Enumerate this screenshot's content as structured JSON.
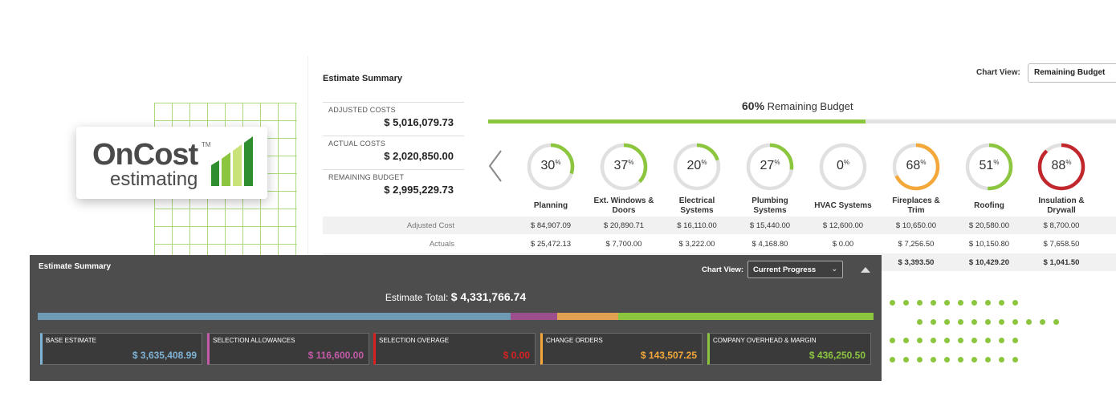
{
  "logo": {
    "word1": "OnCost",
    "tm": "TM",
    "word2": "estimating"
  },
  "top_panel": {
    "title": "Estimate Summary",
    "chart_view_label": "Chart View:",
    "chart_view_value": "Remaining Budget",
    "costs": [
      {
        "label": "ADJUSTED COSTS",
        "value": "$ 5,016,079.73"
      },
      {
        "label": "ACTUAL COSTS",
        "value": "$ 2,020,850.00"
      },
      {
        "label": "REMAINING BUDGET",
        "value": "$ 2,995,229.73"
      }
    ],
    "remaining_pct": "60%",
    "remaining_label": "Remaining Budget",
    "remaining_fraction": 0.6,
    "categories": [
      {
        "name": "Planning",
        "pct": "30",
        "fraction": 0.3,
        "color": "#8cc63f"
      },
      {
        "name": "Ext. Windows & Doors",
        "pct": "37",
        "fraction": 0.37,
        "color": "#8cc63f"
      },
      {
        "name": "Electrical Systems",
        "pct": "20",
        "fraction": 0.2,
        "color": "#8cc63f"
      },
      {
        "name": "Plumbing Systems",
        "pct": "27",
        "fraction": 0.27,
        "color": "#8cc63f"
      },
      {
        "name": "HVAC Systems",
        "pct": "0",
        "fraction": 0.0,
        "color": "#8cc63f"
      },
      {
        "name": "Fireplaces & Trim",
        "pct": "68",
        "fraction": 0.68,
        "color": "#f4a83a"
      },
      {
        "name": "Roofing",
        "pct": "51",
        "fraction": 0.51,
        "color": "#8cc63f"
      },
      {
        "name": "Insulation & Drywall",
        "pct": "88",
        "fraction": 0.88,
        "color": "#c1272d"
      }
    ],
    "pct_symbol": "%",
    "rows": [
      {
        "label": "Adjusted Cost",
        "values": [
          "$ 84,907.09",
          "$ 20,890.71",
          "$ 16,110.00",
          "$ 15,440.00",
          "$ 12,600.00",
          "$ 10,650.00",
          "$ 20,580.00",
          "$ 8,700.00"
        ]
      },
      {
        "label": "Actuals",
        "values": [
          "$ 25,472.13",
          "$ 7,700.00",
          "$ 3,222.00",
          "$ 4,168.80",
          "$ 0.00",
          "$ 7,256.50",
          "$ 10,150.80",
          "$ 7,658.50"
        ]
      },
      {
        "label": "",
        "values": [
          "",
          "",
          "",
          "",
          "",
          "$ 3,393.50",
          "$ 10,429.20",
          "$ 1,041.50"
        ]
      }
    ]
  },
  "dark_panel": {
    "title": "Estimate Summary",
    "chart_view_label": "Chart View:",
    "chart_view_value": "Current Progress",
    "total_label": "Estimate Total:",
    "total_value": "$ 4,331,766.74",
    "segments": [
      {
        "name": "BASE ESTIMATE",
        "fraction": 0.566,
        "color": "#6f9ab6"
      },
      {
        "name": "SELECTION ALLOWANCES",
        "fraction": 0.056,
        "color": "#9b4f8c"
      },
      {
        "name": "CHANGE ORDERS",
        "fraction": 0.073,
        "color": "#e0a153"
      },
      {
        "name": "COMPANY OVERHEAD & MARGIN",
        "fraction": 0.305,
        "color": "#8cc63f"
      }
    ],
    "cards": [
      {
        "label": "BASE ESTIMATE",
        "value": "$ 3,635,408.99",
        "color": "#7fb3d5"
      },
      {
        "label": "SELECTION ALLOWANCES",
        "value": "$ 116,600.00",
        "color": "#c45aa8"
      },
      {
        "label": "SELECTION OVERAGE",
        "value": "$ 0.00",
        "color": "#d92020"
      },
      {
        "label": "CHANGE ORDERS",
        "value": "$ 143,507.25",
        "color": "#f4a83a"
      },
      {
        "label": "COMPANY OVERHEAD & MARGIN",
        "value": "$ 436,250.50",
        "color": "#8cc63f"
      }
    ]
  }
}
